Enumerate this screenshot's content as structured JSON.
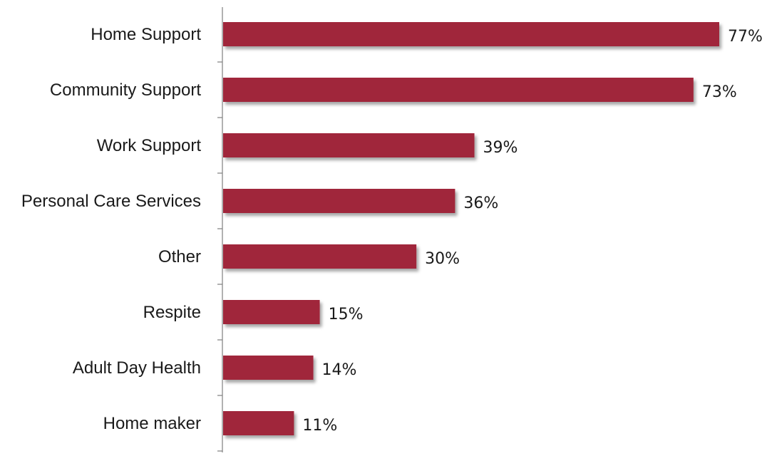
{
  "chart_data": {
    "type": "bar",
    "orientation": "horizontal",
    "categories": [
      "Home Support",
      "Community Support",
      "Work Support",
      "Personal Care Services",
      "Other",
      "Respite",
      "Adult Day Health",
      "Home maker"
    ],
    "values": [
      77,
      73,
      39,
      36,
      30,
      15,
      14,
      11
    ],
    "value_labels": [
      "77%",
      "73%",
      "39%",
      "36%",
      "30%",
      "15%",
      "14%",
      "11%"
    ],
    "title": "",
    "xlabel": "",
    "ylabel": "",
    "xlim": [
      0,
      80
    ],
    "grid": false,
    "legend": "none",
    "bar_color": "#A0283A"
  }
}
